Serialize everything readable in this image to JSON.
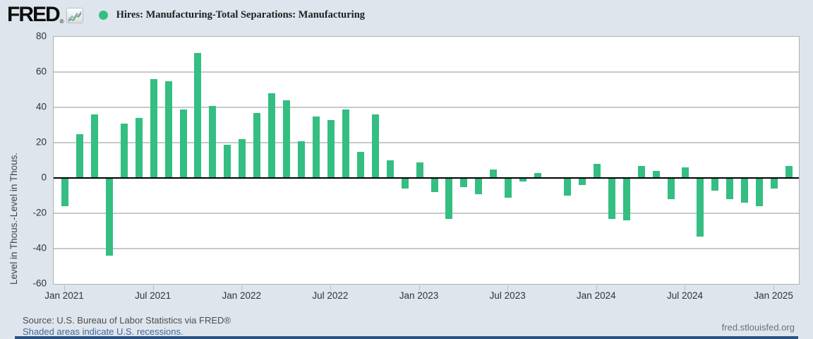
{
  "header": {
    "logo_text": "FRED",
    "logo_registered": "®",
    "series_title": "Hires: Manufacturing-Total Separations: Manufacturing"
  },
  "chart_data": {
    "type": "bar",
    "title": "Hires: Manufacturing-Total Separations: Manufacturing",
    "xlabel": "",
    "ylabel": "Level in Thous.-Level in Thous.",
    "ylim": [
      -60,
      80
    ],
    "y_ticks": [
      80,
      60,
      40,
      20,
      0,
      -20,
      -40,
      -60
    ],
    "grid": true,
    "legend_position": "top-left",
    "bar_color": "#34be82",
    "x_tick_labels": [
      "Jan 2021",
      "Jul 2021",
      "Jan 2022",
      "Jul 2022",
      "Jan 2023",
      "Jul 2023",
      "Jan 2024",
      "Jul 2024",
      "Jan 2025"
    ],
    "x_tick_month_index": [
      0,
      6,
      12,
      18,
      24,
      30,
      36,
      42,
      48
    ],
    "months": [
      "2021-01",
      "2021-02",
      "2021-03",
      "2021-04",
      "2021-05",
      "2021-06",
      "2021-07",
      "2021-08",
      "2021-09",
      "2021-10",
      "2021-11",
      "2021-12",
      "2022-01",
      "2022-02",
      "2022-03",
      "2022-04",
      "2022-05",
      "2022-06",
      "2022-07",
      "2022-08",
      "2022-09",
      "2022-10",
      "2022-11",
      "2022-12",
      "2023-01",
      "2023-02",
      "2023-03",
      "2023-04",
      "2023-05",
      "2023-06",
      "2023-07",
      "2023-08",
      "2023-09",
      "2023-10",
      "2023-11",
      "2023-12",
      "2024-01",
      "2024-02",
      "2024-03",
      "2024-04",
      "2024-05",
      "2024-06",
      "2024-07",
      "2024-08",
      "2024-09",
      "2024-10",
      "2024-11",
      "2024-12",
      "2025-01",
      "2025-02"
    ],
    "values": [
      -16,
      25,
      36,
      -44,
      31,
      34,
      56,
      55,
      39,
      71,
      41,
      19,
      22,
      37,
      48,
      44,
      21,
      35,
      33,
      39,
      15,
      36,
      10,
      -6,
      9,
      -8,
      -23,
      -5,
      -9,
      5,
      -11,
      -2,
      3,
      0,
      -10,
      -4,
      8,
      -23,
      -24,
      7,
      4,
      -12,
      6,
      -33,
      -7,
      -12,
      -14,
      -16,
      -6,
      7
    ]
  },
  "footer": {
    "source": "Source: U.S. Bureau of Labor Statistics via FRED®",
    "recession_note": "Shaded areas indicate U.S. recessions.",
    "site": "fred.stlouisfed.org"
  }
}
